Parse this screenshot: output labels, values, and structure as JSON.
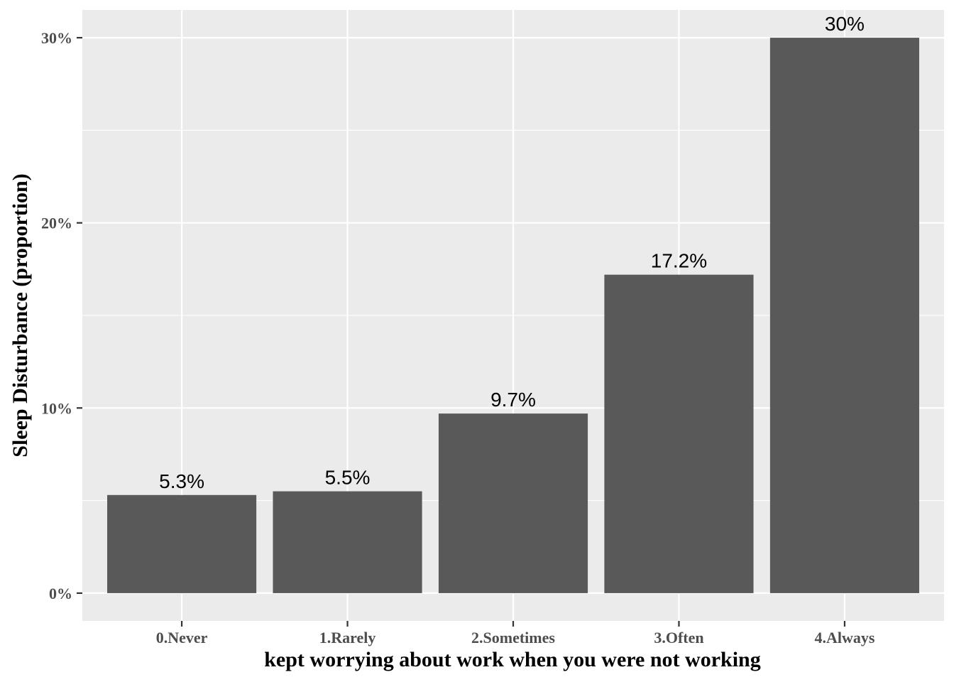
{
  "chart_data": {
    "type": "bar",
    "title": "",
    "xlabel": "kept worrying about work when you were not working",
    "ylabel": "Sleep Disturbance (proportion)",
    "categories": [
      "0.Never",
      "1.Rarely",
      "2.Sometimes",
      "3.Often",
      "4.Always"
    ],
    "values": [
      5.3,
      5.5,
      9.7,
      17.2,
      30.0
    ],
    "value_labels": [
      "5.3%",
      "5.5%",
      "9.7%",
      "17.2%",
      "30%"
    ],
    "yticks": [
      0,
      10,
      20,
      30
    ],
    "ytick_labels": [
      "0%",
      "10%",
      "20%",
      "30%"
    ],
    "ylim": [
      -1.5,
      31.5
    ],
    "grid": true,
    "legend": "none",
    "colors": {
      "bar": "#595959",
      "panel": "#ebebeb",
      "grid": "#ffffff"
    }
  }
}
